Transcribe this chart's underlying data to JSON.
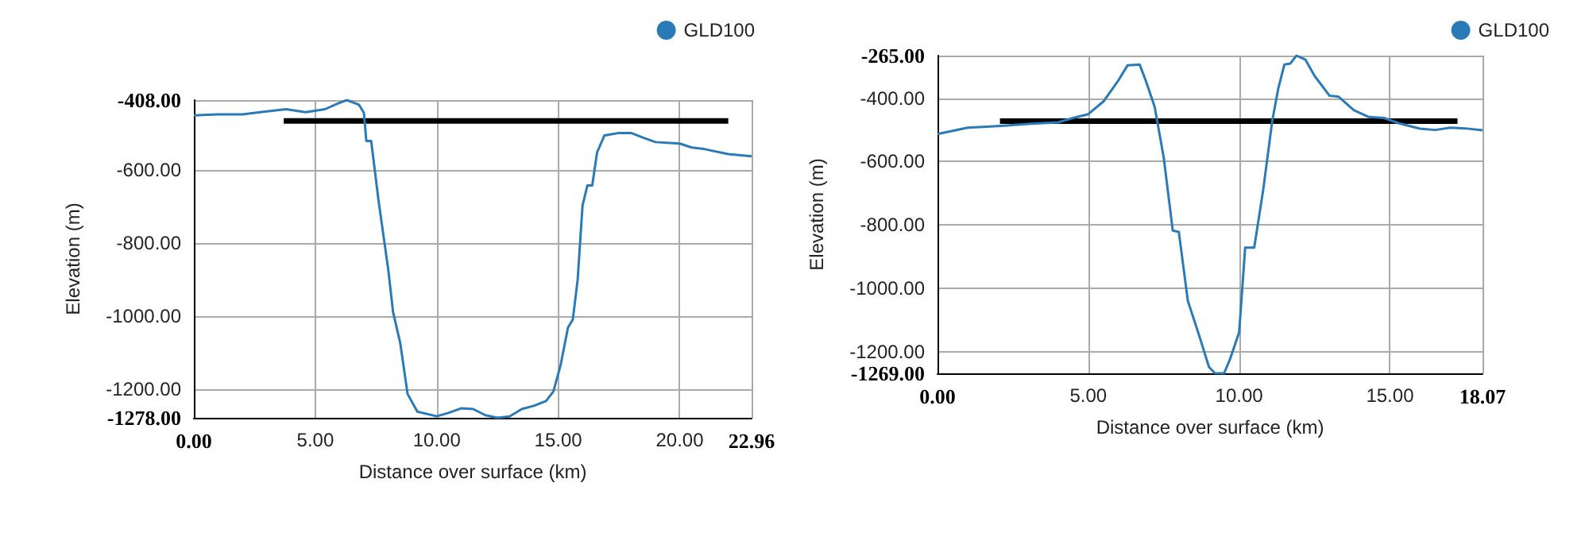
{
  "chart_data": [
    {
      "type": "line",
      "xlabel": "Distance over surface (km)",
      "ylabel": "Elevation (m)",
      "legend": "top right",
      "grid": true,
      "marker": "none",
      "line_style": "solid",
      "xlim": [
        0,
        22.96
      ],
      "ylim": [
        -1278,
        -408
      ],
      "xticks": [
        {
          "value": 0,
          "label": "0.00"
        },
        {
          "value": 5,
          "label": "5.00"
        },
        {
          "value": 10,
          "label": "10.00"
        },
        {
          "value": 15,
          "label": "15.00"
        },
        {
          "value": 20,
          "label": "20.00"
        },
        {
          "value": 22.96,
          "label": "22.96"
        }
      ],
      "yticks": [
        {
          "value": -1278,
          "label": "-1278.00"
        },
        {
          "value": -1200,
          "label": "-1200.00"
        },
        {
          "value": -1000,
          "label": "-1000.00"
        },
        {
          "value": -800,
          "label": "-800.00"
        },
        {
          "value": -600,
          "label": "-600.00"
        },
        {
          "value": -408,
          "label": "-408.00"
        }
      ],
      "series": [
        {
          "name": "GLD100",
          "color": "#2a7ab8",
          "x": [
            0,
            1,
            2,
            3,
            3.8,
            4.6,
            5.4,
            5.9,
            6.3,
            6.8,
            7.0,
            7.1,
            7.3,
            7.6,
            8.0,
            8.2,
            8.5,
            8.8,
            9.2,
            10,
            10.5,
            11,
            11.5,
            12,
            12.5,
            13,
            13.5,
            14,
            14.5,
            14.8,
            15.1,
            15.4,
            15.6,
            15.8,
            16.0,
            16.2,
            16.4,
            16.6,
            16.9,
            17.5,
            18,
            18.5,
            19,
            20,
            20.5,
            21,
            22,
            22.96
          ],
          "values": [
            -450,
            -447,
            -447,
            -439,
            -433,
            -441,
            -433,
            -418,
            -408,
            -421,
            -443,
            -520,
            -520,
            -682,
            -871,
            -988,
            -1075,
            -1213,
            -1261,
            -1274,
            -1264,
            -1252,
            -1254,
            -1271,
            -1278,
            -1274,
            -1254,
            -1245,
            -1232,
            -1206,
            -1133,
            -1031,
            -1009,
            -900,
            -697,
            -642,
            -642,
            -551,
            -505,
            -498,
            -498,
            -511,
            -523,
            -527,
            -538,
            -542,
            -556,
            -562
          ]
        },
        {
          "color": "#000000",
          "x": [
            3.7,
            22.0
          ],
          "values": [
            -465,
            -465
          ]
        }
      ]
    },
    {
      "type": "line",
      "xlabel": "Distance over surface (km)",
      "ylabel": "Elevation (m)",
      "legend": "top right",
      "grid": true,
      "marker": "none",
      "line_style": "solid",
      "xlim": [
        0,
        18.07
      ],
      "ylim": [
        -1269,
        -265
      ],
      "xticks": [
        {
          "value": 0,
          "label": "0.00"
        },
        {
          "value": 5,
          "label": "5.00"
        },
        {
          "value": 10,
          "label": "10.00"
        },
        {
          "value": 15,
          "label": "15.00"
        },
        {
          "value": 18.07,
          "label": "18.07"
        }
      ],
      "yticks": [
        {
          "value": -1269,
          "label": "-1269.00"
        },
        {
          "value": -1200,
          "label": "-1200.00"
        },
        {
          "value": -1000,
          "label": "-1000.00"
        },
        {
          "value": -800,
          "label": "-800.00"
        },
        {
          "value": -600,
          "label": "-600.00"
        },
        {
          "value": -400,
          "label": "-400.00"
        },
        {
          "value": -265,
          "label": "-265.00"
        }
      ],
      "series": [
        {
          "name": "GLD100",
          "color": "#2a7ab8",
          "x": [
            0,
            1,
            2,
            3,
            4,
            4.5,
            5,
            5.5,
            6,
            6.3,
            6.7,
            6.9,
            7.2,
            7.5,
            7.8,
            8,
            8.3,
            8.7,
            9,
            9.2,
            9.5,
            9.7,
            10,
            10.2,
            10.5,
            10.8,
            11.1,
            11.3,
            11.5,
            11.7,
            11.9,
            12.2,
            12.5,
            13,
            13.3,
            13.8,
            14.3,
            14.8,
            15.3,
            16,
            16.5,
            17,
            17.5,
            18.07
          ],
          "values": [
            -513,
            -493,
            -488,
            -481,
            -476,
            -462,
            -450,
            -410,
            -343,
            -296,
            -293,
            -343,
            -427,
            -587,
            -818,
            -822,
            -1040,
            -1157,
            -1249,
            -1269,
            -1269,
            -1224,
            -1140,
            -872,
            -872,
            -688,
            -470,
            -368,
            -293,
            -290,
            -265,
            -278,
            -329,
            -392,
            -395,
            -437,
            -459,
            -462,
            -479,
            -496,
            -500,
            -493,
            -495,
            -501
          ]
        },
        {
          "color": "#000000",
          "x": [
            2.07,
            17.24
          ],
          "values": [
            -472,
            -472
          ]
        }
      ]
    }
  ]
}
